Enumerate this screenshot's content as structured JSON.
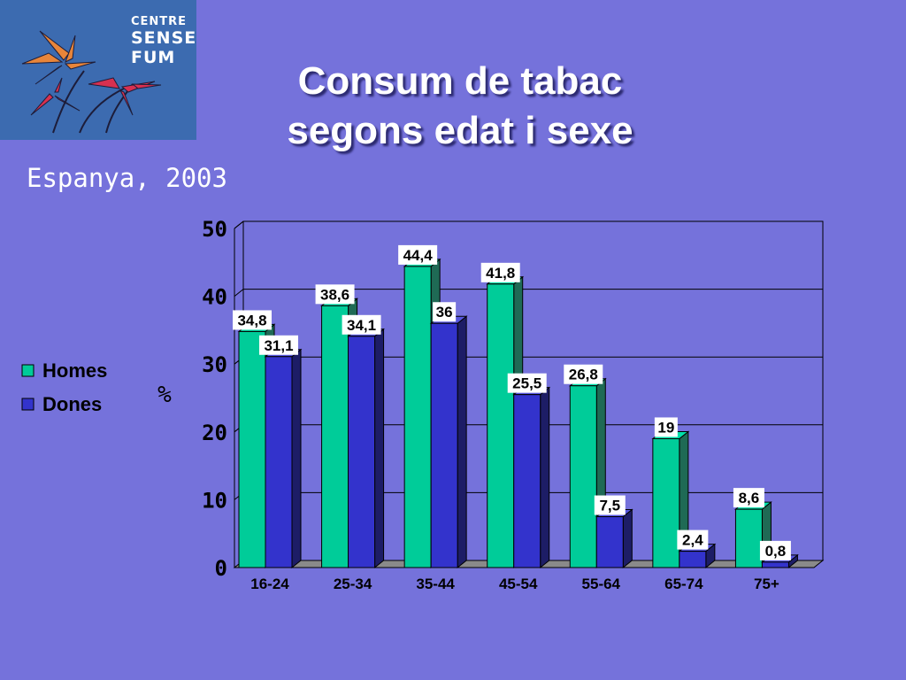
{
  "logo": {
    "line1": "CENTRE",
    "line2": "SENSE",
    "line3": "FUM"
  },
  "title": {
    "line1": "Consum de tabac",
    "line2": "segons edat i sexe"
  },
  "subtitle": "Espanya, 2003",
  "colors": {
    "background": "#7572db",
    "homes": "#00cc99",
    "dones": "#3333cc"
  },
  "chart_data": {
    "type": "bar",
    "categories": [
      "16-24",
      "25-34",
      "35-44",
      "45-54",
      "55-64",
      "65-74",
      "75+"
    ],
    "series": [
      {
        "name": "Homes",
        "values": [
          34.8,
          38.6,
          44.4,
          41.8,
          26.8,
          19,
          8.6
        ],
        "labels": [
          "34,8",
          "38,6",
          "44,4",
          "41,8",
          "26,8",
          "19",
          "8,6"
        ]
      },
      {
        "name": "Dones",
        "values": [
          31.1,
          34.1,
          36,
          25.5,
          7.5,
          2.4,
          0.8
        ],
        "labels": [
          "31,1",
          "34,1",
          "36",
          "25,5",
          "7,5",
          "2,4",
          "0,8"
        ]
      }
    ],
    "ylabel": "%",
    "ylim": [
      0,
      50
    ],
    "yticks": [
      "0",
      "10",
      "20",
      "30",
      "40",
      "50"
    ],
    "grid": true,
    "legend": "left",
    "style": "3d"
  }
}
